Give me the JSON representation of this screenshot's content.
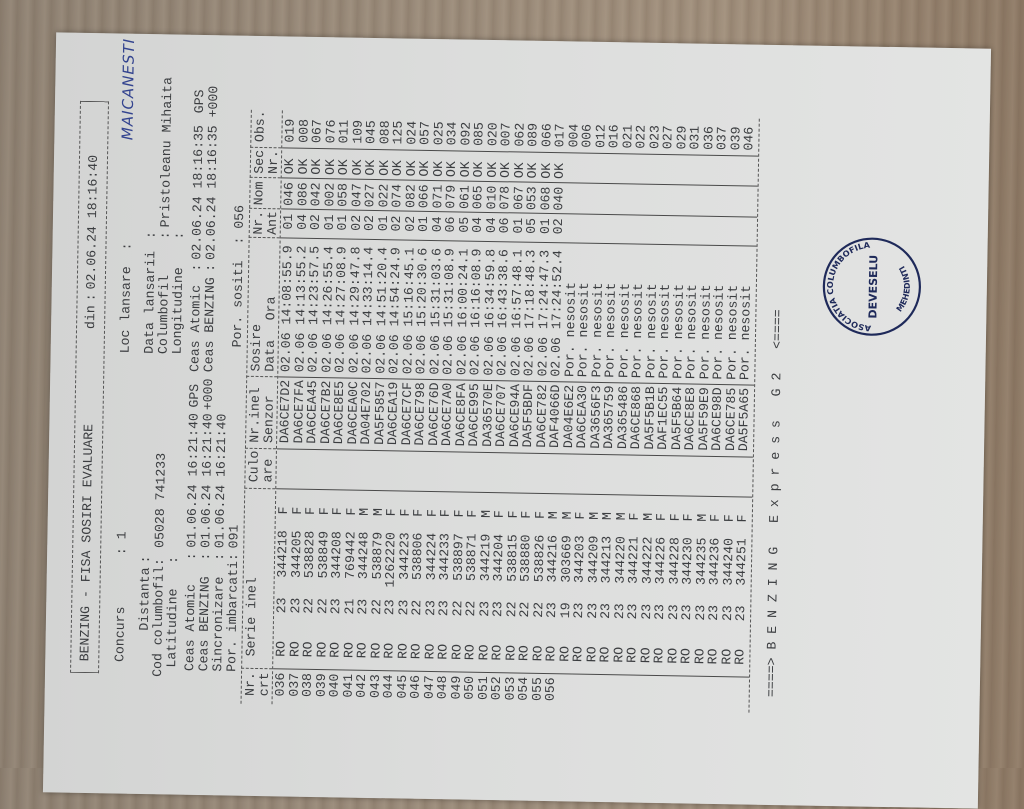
{
  "header": {
    "title": "BENZING - FISA SOSIRI EVALUARE",
    "din_label": "din",
    "din_value": "02.06.24 18:16:40"
  },
  "info": {
    "concurs_label": "Concurs",
    "concurs": "1",
    "loc_lansare_label": "Loc lansare",
    "loc_lansare": "MAICANESTI",
    "distanta_label": "Distanta",
    "cod_label": "Cod columbofil",
    "cod": "05028 741233",
    "latitudine_label": "Latitudine",
    "data_lansarii_label": "Data lansarii",
    "columbofil_label": "Columbofil",
    "columbofil": "Pristoleanu Mihaita",
    "longitudine_label": "Longitudine"
  },
  "clocks": {
    "left": [
      {
        "label": "Ceas Atomic",
        "value": "01.06.24 16:21:40",
        "suffix": "GPS"
      },
      {
        "label": "Ceas BENZING",
        "value": "01.06.24 16:21:40",
        "suffix": "+000"
      },
      {
        "label": "Sincronizare",
        "value": "01.06.24 16:21:40"
      }
    ],
    "right": [
      {
        "label": "Ceas Atomic",
        "value": "02.06.24 18:16:35",
        "suffix": "GPS"
      },
      {
        "label": "Ceas BENZING",
        "value": "02.06.24 18:16:35",
        "suffix": "+000"
      }
    ],
    "por_imbarcati_label": "Por. imbarcati",
    "por_imbarcati": "091",
    "por_sositi_label": "Por. sositi",
    "por_sositi": "056"
  },
  "table": {
    "headers": {
      "nr": [
        "Nr.",
        "crt"
      ],
      "serie": "Serie inel",
      "culoare": [
        "Culo",
        "are"
      ],
      "senzor": [
        "Nr.inel",
        "Senzor"
      ],
      "sosire": "Sosire",
      "data": "Data",
      "ora": "Ora",
      "ant": [
        "Nr.",
        "Ant"
      ],
      "nom": "Nom",
      "sec": [
        "Sec",
        "Nr."
      ],
      "obs": "Obs."
    },
    "rows": [
      {
        "nr": "036",
        "country": "RO",
        "year": "23",
        "ring": "344218",
        "sex": "F",
        "sensor": "DA6CE7D2",
        "date": "02.06",
        "time": "14:08:55.9",
        "ant": "01",
        "nom": "046",
        "sec": "OK",
        "obs": "019"
      },
      {
        "nr": "037",
        "country": "RO",
        "year": "23",
        "ring": "344205",
        "sex": "F",
        "sensor": "DA6CE7FA",
        "date": "02.06",
        "time": "14:13:55.2",
        "ant": "04",
        "nom": "086",
        "sec": "OK",
        "obs": "008"
      },
      {
        "nr": "038",
        "country": "RO",
        "year": "22",
        "ring": "538828",
        "sex": "F",
        "sensor": "DA6CEA45",
        "date": "02.06",
        "time": "14:23:57.5",
        "ant": "02",
        "nom": "042",
        "sec": "OK",
        "obs": "067"
      },
      {
        "nr": "039",
        "country": "RO",
        "year": "22",
        "ring": "538849",
        "sex": "F",
        "sensor": "DA6CE7B2",
        "date": "02.06",
        "time": "14:26:55.4",
        "ant": "01",
        "nom": "002",
        "sec": "OK",
        "obs": "076"
      },
      {
        "nr": "040",
        "country": "RO",
        "year": "23",
        "ring": "344208",
        "sex": "F",
        "sensor": "DA6CE8E5",
        "date": "02.06",
        "time": "14:27:08.9",
        "ant": "01",
        "nom": "058",
        "sec": "OK",
        "obs": "011"
      },
      {
        "nr": "041",
        "country": "RO",
        "year": "21",
        "ring": "769442",
        "sex": "F",
        "sensor": "DA6CEA0C",
        "date": "02.06",
        "time": "14:29:47.8",
        "ant": "02",
        "nom": "047",
        "sec": "OK",
        "obs": "109"
      },
      {
        "nr": "042",
        "country": "RO",
        "year": "23",
        "ring": "344248",
        "sex": "M",
        "sensor": "DA04E702",
        "date": "02.06",
        "time": "14:33:14.4",
        "ant": "02",
        "nom": "027",
        "sec": "OK",
        "obs": "045"
      },
      {
        "nr": "043",
        "country": "RO",
        "year": "22",
        "ring": "538879",
        "sex": "M",
        "sensor": "DA5F5857",
        "date": "02.06",
        "time": "14:51:20.4",
        "ant": "01",
        "nom": "022",
        "sec": "OK",
        "obs": "088"
      },
      {
        "nr": "044",
        "country": "RO",
        "year": "23",
        "ring": "1262220",
        "sex": "F",
        "sensor": "DA6CEA19",
        "date": "02.06",
        "time": "14:54:24.9",
        "ant": "02",
        "nom": "074",
        "sec": "OK",
        "obs": "125"
      },
      {
        "nr": "045",
        "country": "RO",
        "year": "23",
        "ring": "344223",
        "sex": "F",
        "sensor": "DA6CE7CF",
        "date": "02.06",
        "time": "15:16:45.1",
        "ant": "02",
        "nom": "082",
        "sec": "OK",
        "obs": "024"
      },
      {
        "nr": "046",
        "country": "RO",
        "year": "22",
        "ring": "538806",
        "sex": "F",
        "sensor": "DA6CE798",
        "date": "02.06",
        "time": "15:20:30.6",
        "ant": "01",
        "nom": "066",
        "sec": "OK",
        "obs": "057"
      },
      {
        "nr": "047",
        "country": "RO",
        "year": "23",
        "ring": "344224",
        "sex": "F",
        "sensor": "DA6CE76D",
        "date": "02.06",
        "time": "15:31:03.6",
        "ant": "04",
        "nom": "071",
        "sec": "OK",
        "obs": "025"
      },
      {
        "nr": "048",
        "country": "RO",
        "year": "23",
        "ring": "344233",
        "sex": "F",
        "sensor": "DA6CE7A0",
        "date": "02.06",
        "time": "15:31:08.9",
        "ant": "06",
        "nom": "079",
        "sec": "OK",
        "obs": "034"
      },
      {
        "nr": "049",
        "country": "RO",
        "year": "22",
        "ring": "538897",
        "sex": "F",
        "sensor": "DA6CE8FA",
        "date": "02.06",
        "time": "16:00:24.1",
        "ant": "05",
        "nom": "061",
        "sec": "OK",
        "obs": "092"
      },
      {
        "nr": "050",
        "country": "RO",
        "year": "22",
        "ring": "538871",
        "sex": "F",
        "sensor": "DA6CE995",
        "date": "02.06",
        "time": "16:16:08.9",
        "ant": "04",
        "nom": "065",
        "sec": "OK",
        "obs": "085"
      },
      {
        "nr": "051",
        "country": "RO",
        "year": "23",
        "ring": "344219",
        "sex": "M",
        "sensor": "DA36570E",
        "date": "02.06",
        "time": "16:34:59.8",
        "ant": "04",
        "nom": "010",
        "sec": "OK",
        "obs": "020"
      },
      {
        "nr": "052",
        "country": "RO",
        "year": "23",
        "ring": "344204",
        "sex": "F",
        "sensor": "DA6CE707",
        "date": "02.06",
        "time": "16:43:38.6",
        "ant": "06",
        "nom": "078",
        "sec": "OK",
        "obs": "007"
      },
      {
        "nr": "053",
        "country": "RO",
        "year": "22",
        "ring": "538815",
        "sex": "F",
        "sensor": "DA6CE94A",
        "date": "02.06",
        "time": "16:57:48.1",
        "ant": "01",
        "nom": "067",
        "sec": "OK",
        "obs": "062"
      },
      {
        "nr": "054",
        "country": "RO",
        "year": "22",
        "ring": "538880",
        "sex": "F",
        "sensor": "DA5F5BDF",
        "date": "02.06",
        "time": "17:18:48.3",
        "ant": "05",
        "nom": "053",
        "sec": "OK",
        "obs": "089"
      },
      {
        "nr": "055",
        "country": "RO",
        "year": "22",
        "ring": "538826",
        "sex": "F",
        "sensor": "DA6CE782",
        "date": "02.06",
        "time": "17:24:47.3",
        "ant": "01",
        "nom": "068",
        "sec": "OK",
        "obs": "066"
      },
      {
        "nr": "056",
        "country": "RO",
        "year": "23",
        "ring": "344216",
        "sex": "M",
        "sensor": "DAF4066D",
        "date": "02.06",
        "time": "17:24:52.4",
        "ant": "02",
        "nom": "040",
        "sec": "OK",
        "obs": "017"
      },
      {
        "country": "RO",
        "year": "19",
        "ring": "303669",
        "sex": "M",
        "sensor": "DA04E6E2",
        "date": "Por. nesosit",
        "obs": "004"
      },
      {
        "country": "RO",
        "year": "23",
        "ring": "344203",
        "sex": "F",
        "sensor": "DA6CEA30",
        "date": "Por. nesosit",
        "obs": "006"
      },
      {
        "country": "RO",
        "year": "23",
        "ring": "344209",
        "sex": "M",
        "sensor": "DA3656F3",
        "date": "Por. nesosit",
        "obs": "012"
      },
      {
        "country": "RO",
        "year": "23",
        "ring": "344213",
        "sex": "M",
        "sensor": "DA365759",
        "date": "Por. nesosit",
        "obs": "016"
      },
      {
        "country": "RO",
        "year": "23",
        "ring": "344220",
        "sex": "M",
        "sensor": "DA365486",
        "date": "Por. nesosit",
        "obs": "021"
      },
      {
        "country": "RO",
        "year": "23",
        "ring": "344221",
        "sex": "F",
        "sensor": "DA6CE868",
        "date": "Por. nesosit",
        "obs": "022"
      },
      {
        "country": "RO",
        "year": "23",
        "ring": "344222",
        "sex": "M",
        "sensor": "DA5F5B1B",
        "date": "Por. nesosit",
        "obs": "023"
      },
      {
        "country": "RO",
        "year": "23",
        "ring": "344226",
        "sex": "F",
        "sensor": "DAF1EC55",
        "date": "Por. nesosit",
        "obs": "027"
      },
      {
        "country": "RO",
        "year": "23",
        "ring": "344228",
        "sex": "F",
        "sensor": "DA5F5B64",
        "date": "Por. nesosit",
        "obs": "029"
      },
      {
        "country": "RO",
        "year": "23",
        "ring": "344230",
        "sex": "F",
        "sensor": "DA6CE8E8",
        "date": "Por. nesosit",
        "obs": "031"
      },
      {
        "country": "RO",
        "year": "23",
        "ring": "344235",
        "sex": "M",
        "sensor": "DA5F59E9",
        "date": "Por. nesosit",
        "obs": "036"
      },
      {
        "country": "RO",
        "year": "23",
        "ring": "344236",
        "sex": "F",
        "sensor": "DA6CE98D",
        "date": "Por. nesosit",
        "obs": "037"
      },
      {
        "country": "RO",
        "year": "23",
        "ring": "344240",
        "sex": "F",
        "sensor": "DA6CE785",
        "date": "Por. nesosit",
        "obs": "039"
      },
      {
        "country": "RO",
        "year": "23",
        "ring": "344251",
        "sex": "F",
        "sensor": "DA5F5A65",
        "date": "Por. nesosit",
        "obs": "046"
      }
    ]
  },
  "footer": "====> B E N Z I N G   E x p r e s s   G 2   <====",
  "stamp": {
    "top": "ASOCIATIA COLUMBOFILA",
    "center": "DEVESELU",
    "bottom": "MEHEDINTI",
    "ink_color": "#1f2a5a"
  },
  "colors": {
    "handwriting": "#33448f",
    "print": "#3b3d40"
  }
}
